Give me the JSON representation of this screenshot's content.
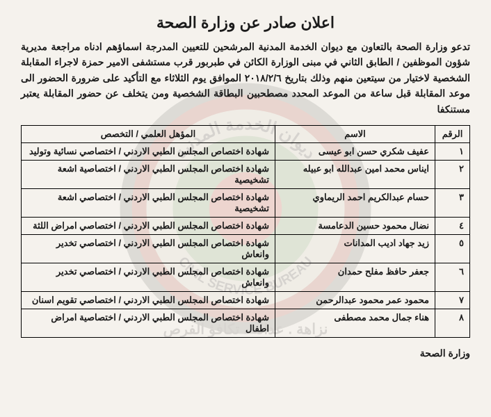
{
  "title": "اعلان صادر عن وزارة الصحة",
  "intro": "تدعو وزارة الصحة بالتعاون مع ديوان الخدمة المدنية المرشحين للتعيين المدرجة اسماؤهم ادناه مراجعة مديرية شؤون الموظفين / الطابق الثاني في مبنى الوزارة الكائن في طبربور قرب مستشفى الامير حمزة لاجراء المقابلة الشخصية لاختيار من سيتعين منهم وذلك بتاريخ ٢٠١٨/٢/٦ الموافق يوم الثلاثاء مع التأكيد على ضرورة الحضور الى موعد المقابلة قبل ساعة من الموعد المحدد مصطحبين البطاقة الشخصية ومن يتخلف عن حضور المقابلة يعتبر مستنكفا",
  "columns": {
    "num": "الرقم",
    "name": "الاسم",
    "qual": "المؤهل العلمي / التخصص"
  },
  "rows": [
    {
      "num": "١",
      "name": "عفيف شكري حسن ابو عيسى",
      "qual": "شهادة اختصاص المجلس الطبي الاردني / اختصاصي نسائية وتوليد"
    },
    {
      "num": "٢",
      "name": "ايناس محمد امين عبدالله ابو عبيله",
      "qual": "شهادة اختصاص المجلس الطبي الاردني / اختصاصية اشعة تشخيصية"
    },
    {
      "num": "٣",
      "name": "حسام عبدالكريم احمد الريماوي",
      "qual": "شهادة اختصاص المجلس الطبي الاردني / اختصاصي اشعة تشخيصية"
    },
    {
      "num": "٤",
      "name": "نضال محمود حسين الدعامسة",
      "qual": "شهادة اختصاص المجلس الطبي الاردني / اختصاصي امراض اللثة"
    },
    {
      "num": "٥",
      "name": "زيد جهاد اديب المدانات",
      "qual": "شهادة اختصاص المجلس الطبي الاردني / اختصاصي تخدير وانعاش"
    },
    {
      "num": "٦",
      "name": "جعفر حافظ مفلح حمدان",
      "qual": "شهادة اختصاص المجلس الطبي الاردني / اختصاصي تخدير وانعاش"
    },
    {
      "num": "٧",
      "name": "محمود عمر محمود عبدالرحمن",
      "qual": "شهادة اختصاص المجلس الطبي الاردني / اختصاصي تقويم اسنان"
    },
    {
      "num": "٨",
      "name": "هناء جمال محمد مصطفى",
      "qual": "شهادة اختصاص المجلس الطبي الاردني / اختصاصية امراض اطفال"
    }
  ],
  "footer": "وزارة الصحة",
  "watermark": {
    "outer_color": "#5a5f58",
    "ring_color": "#a83a2a",
    "mid_color": "#d8d2c2",
    "inner_color": "#6a9a5a",
    "center_color": "#c53a2a",
    "motto": "نزاهة . عدالة . تكافؤ الفرص",
    "org_top": "ديوان الخدمة المدنية",
    "org_bottom": "CIVIL SERVICE BUREAU"
  }
}
